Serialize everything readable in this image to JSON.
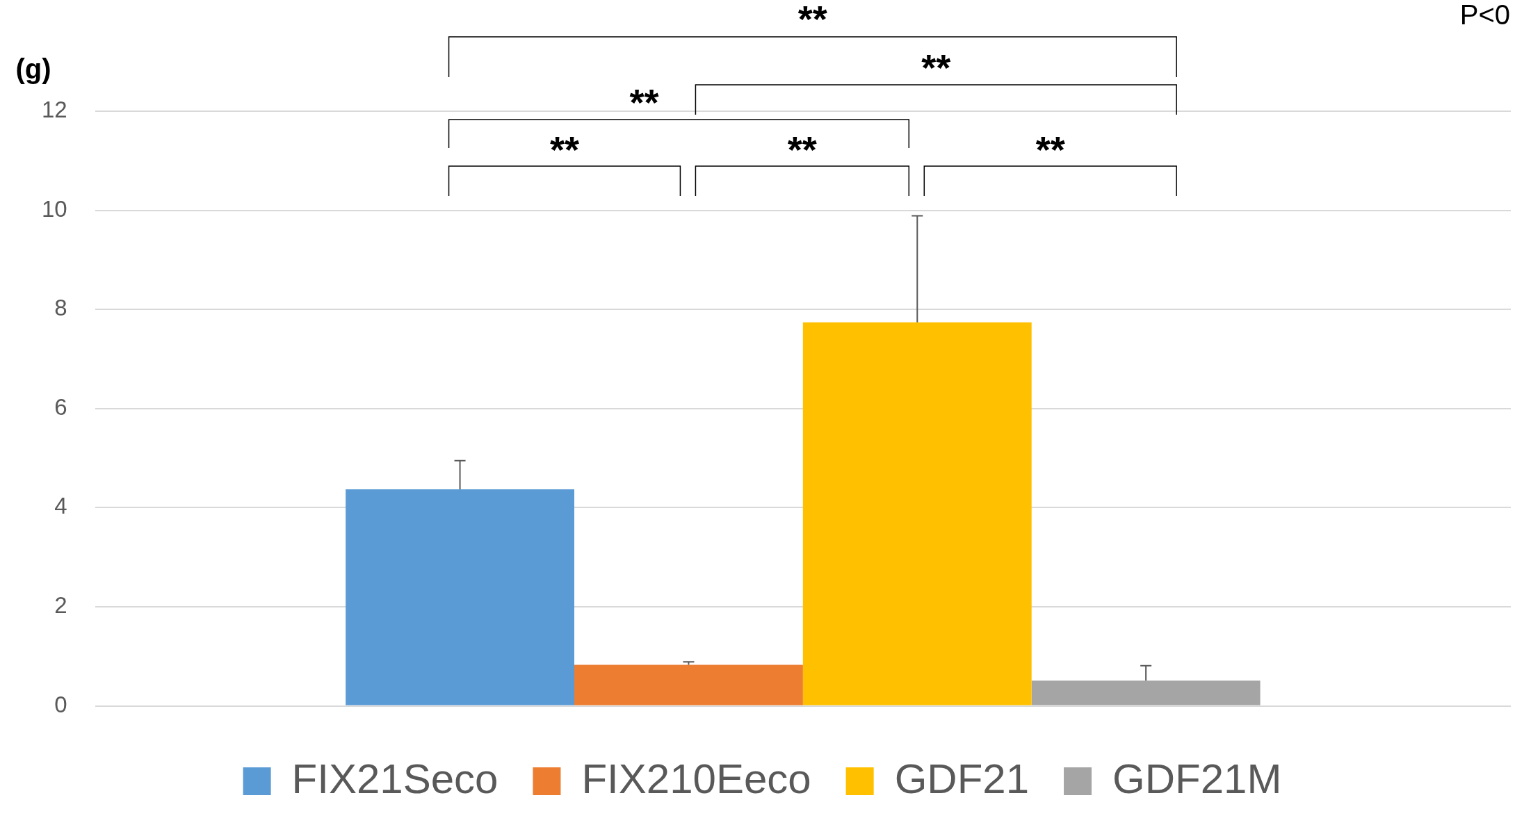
{
  "chart_data": {
    "type": "bar",
    "ylabel": "(g)",
    "categories": [
      null
    ],
    "series": [
      {
        "name": "FIX21Seco",
        "color": "#5b9bd5",
        "values": [
          4.37
        ],
        "errors": [
          0.58
        ]
      },
      {
        "name": "FIX210Eeco",
        "color": "#ed7d31",
        "values": [
          0.83
        ],
        "errors": [
          0.06
        ]
      },
      {
        "name": "GDF21",
        "color": "#ffc000",
        "values": [
          7.74
        ],
        "errors": [
          2.15
        ]
      },
      {
        "name": "GDF21M",
        "color": "#a5a5a5",
        "values": [
          0.51
        ],
        "errors": [
          0.3
        ]
      }
    ],
    "ylim": [
      0,
      12
    ],
    "yticks": [
      0,
      2,
      4,
      6,
      8,
      10,
      12
    ],
    "grid": "y",
    "legend": "bottom",
    "annotations": [
      "**",
      "**",
      "**",
      "**",
      "**",
      "**",
      "P<0"
    ]
  }
}
